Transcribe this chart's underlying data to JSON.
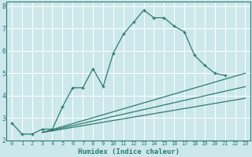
{
  "xlabel": "Humidex (Indice chaleur)",
  "xlim": [
    -0.5,
    23.5
  ],
  "ylim": [
    2,
    8.2
  ],
  "xticks": [
    0,
    1,
    2,
    3,
    4,
    5,
    6,
    7,
    8,
    9,
    10,
    11,
    12,
    13,
    14,
    15,
    16,
    17,
    18,
    19,
    20,
    21,
    22,
    23
  ],
  "yticks": [
    2,
    3,
    4,
    5,
    6,
    7,
    8
  ],
  "bg_color": "#cce8eb",
  "grid_color": "#b0d8dc",
  "line_color": "#2d7a6e",
  "curve_x": [
    0,
    1,
    2,
    3,
    4,
    5,
    6,
    7,
    8,
    9,
    10,
    11,
    12,
    13,
    14,
    15,
    16,
    17,
    18,
    19,
    20,
    21
  ],
  "curve_y": [
    2.78,
    2.28,
    2.28,
    2.5,
    2.5,
    3.5,
    4.35,
    4.35,
    5.2,
    4.4,
    5.9,
    6.75,
    7.28,
    7.82,
    7.48,
    7.48,
    7.1,
    6.85,
    5.8,
    5.35,
    5.0,
    4.9
  ],
  "line1_x": [
    3,
    23
  ],
  "line1_y": [
    2.35,
    5.0
  ],
  "line2_x": [
    3,
    23
  ],
  "line2_y": [
    2.35,
    4.4
  ],
  "line3_x": [
    3,
    23
  ],
  "line3_y": [
    2.35,
    3.88
  ]
}
